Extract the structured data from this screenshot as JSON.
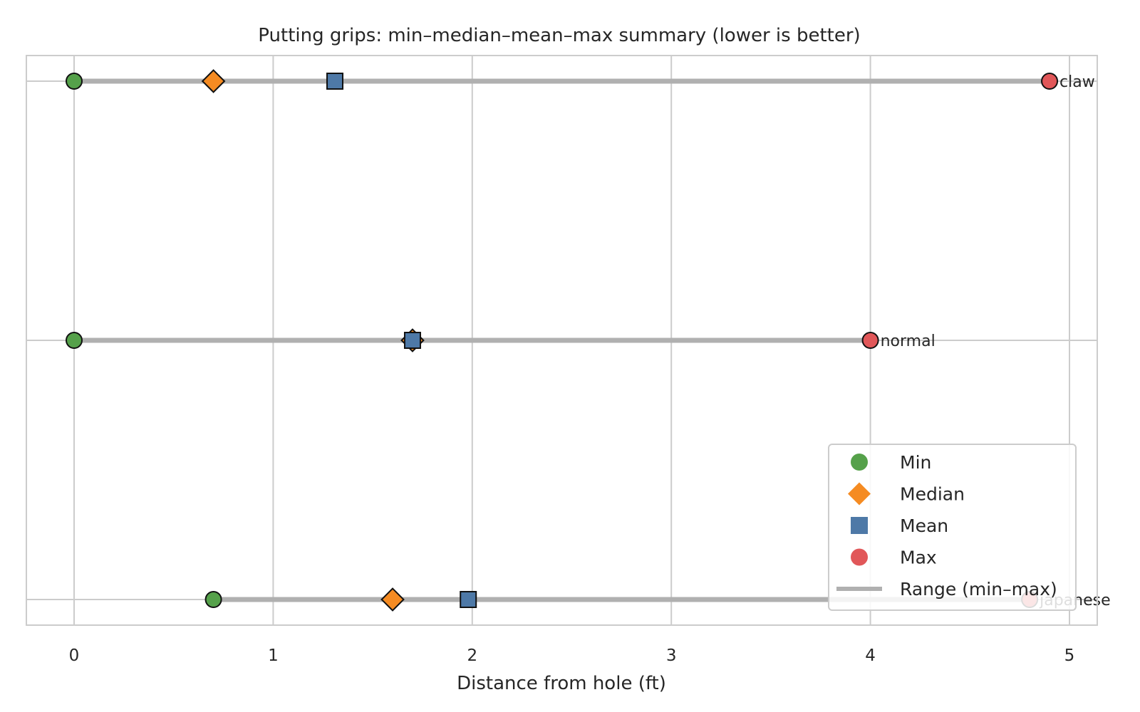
{
  "chart_data": {
    "type": "dot-range",
    "title": "Putting grips: min–median–mean–max summary (lower is better)",
    "xlabel": "Distance from hole (ft)",
    "ylabel": "",
    "xlim": [
      -0.24,
      5.14
    ],
    "xticks": [
      0,
      1,
      2,
      3,
      4,
      5
    ],
    "grid": true,
    "legend_position": "lower-right",
    "categories": [
      "claw",
      "normal",
      "japanese"
    ],
    "series": [
      {
        "name": "Min",
        "marker": "circle",
        "color": "#55a14a",
        "values": [
          0.0,
          0.0,
          0.7
        ]
      },
      {
        "name": "Median",
        "marker": "diamond",
        "color": "#f58b22",
        "values": [
          0.7,
          1.7,
          1.6
        ]
      },
      {
        "name": "Mean",
        "marker": "square",
        "color": "#4e79a7",
        "values": [
          1.31,
          1.7,
          1.98
        ]
      },
      {
        "name": "Max",
        "marker": "circle",
        "color": "#e15759",
        "values": [
          4.9,
          4.0,
          4.8
        ]
      }
    ],
    "range_series": {
      "name": "Range (min–max)",
      "color": "#b0b0b0"
    }
  }
}
